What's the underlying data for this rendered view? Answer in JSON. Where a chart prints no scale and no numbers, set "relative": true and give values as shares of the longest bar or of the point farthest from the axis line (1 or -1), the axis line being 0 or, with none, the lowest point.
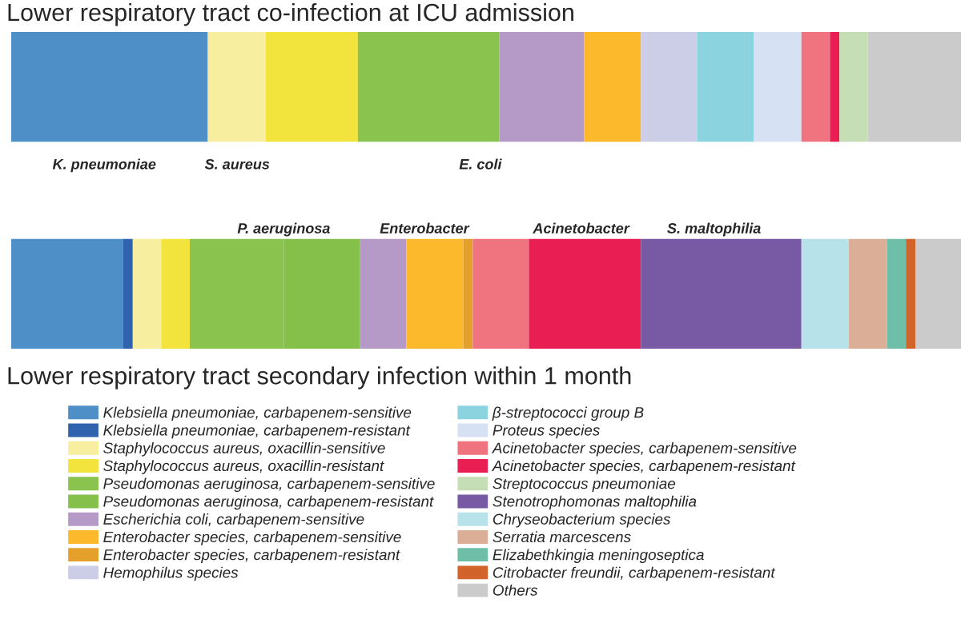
{
  "chart_data": {
    "type": "bar",
    "orientation": "horizontal",
    "stacked": true,
    "relative": true,
    "title": "Lower respiratory tract co-infection at ICU admission",
    "xlabel": "Lower respiratory tract secondary infection within 1 month",
    "categories": [
      null,
      null
    ],
    "legend": "bottom",
    "annotations": [
      "K. pneumoniae",
      "S. aureus",
      "E. coli",
      "P. aeruginosa",
      "Enterobacter",
      "Acinetobacter",
      "S. maltophilia"
    ],
    "series": [
      {
        "name": "Klebsiella pneumoniae, carbapenem-sensitive",
        "color": "#4f8fc8",
        "values": [
          0.207,
          0.118
        ]
      },
      {
        "name": "Klebsiella pneumoniae, carbapenem-resistant",
        "color": "#2f63ae",
        "values": [
          0,
          0.01
        ]
      },
      {
        "name": "Staphylococcus aureus, oxacillin-sensitive",
        "color": "#f7ef9f",
        "values": [
          0.061,
          0.03
        ]
      },
      {
        "name": "Staphylococcus aureus, oxacillin-resistant",
        "color": "#f2e43c",
        "values": [
          0.097,
          0.03
        ]
      },
      {
        "name": "Pseudomonas aeruginosa, carbapenem-sensitive",
        "color": "#8bc34f",
        "values": [
          0.149,
          0.099
        ]
      },
      {
        "name": "Pseudomonas aeruginosa, carbapenem-resistant",
        "color": "#84c04a",
        "values": [
          0,
          0.08
        ]
      },
      {
        "name": "Escherichia coli, carbapenem-sensitive",
        "color": "#b59ac8",
        "values": [
          0.089,
          0.049
        ]
      },
      {
        "name": "Enterobacter species, carbapenem-sensitive",
        "color": "#fdb92c",
        "values": [
          0.06,
          0.06
        ]
      },
      {
        "name": "Enterobacter species, carbapenem-resistant",
        "color": "#e5a02c",
        "values": [
          0,
          0.01
        ]
      },
      {
        "name": "Hemophilus species",
        "color": "#cccde6",
        "values": [
          0.059,
          0
        ]
      },
      {
        "name": "β-streptococci group B",
        "color": "#8cd3e0",
        "values": [
          0.06,
          0
        ]
      },
      {
        "name": "Proteus species",
        "color": "#d6e2f3",
        "values": [
          0.05,
          0
        ]
      },
      {
        "name": "Acinetobacter species, carbapenem-sensitive",
        "color": "#f07480",
        "values": [
          0.03,
          0.059
        ]
      },
      {
        "name": "Acinetobacter species, carbapenem-resistant",
        "color": "#e91f53",
        "values": [
          0.01,
          0.118
        ]
      },
      {
        "name": "Streptococcus pneumoniae",
        "color": "#c5deb5",
        "values": [
          0.03,
          0
        ]
      },
      {
        "name": "Stenotrophomonas maltophilia",
        "color": "#7759a4",
        "values": [
          0,
          0.169
        ]
      },
      {
        "name": "Chryseobacterium species",
        "color": "#b8e2ea",
        "values": [
          0,
          0.05
        ]
      },
      {
        "name": "Serratia marcescens",
        "color": "#dbae98",
        "values": [
          0,
          0.04
        ]
      },
      {
        "name": "Elizabethkingia meningoseptica",
        "color": "#6fbea8",
        "values": [
          0,
          0.02
        ]
      },
      {
        "name": "Citrobacter freundii, carbapenem-resistant",
        "color": "#d1632b",
        "values": [
          0,
          0.01
        ]
      },
      {
        "name": "Others",
        "color": "#cccbcb",
        "values": [
          0.098,
          0.048
        ]
      }
    ]
  }
}
